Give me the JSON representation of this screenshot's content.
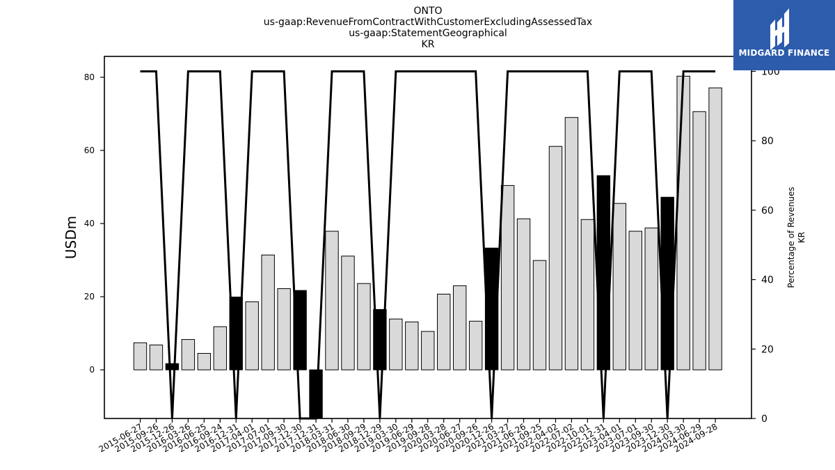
{
  "chart_data": {
    "type": "bar",
    "title": [
      "ONTO",
      "us-gaap:RevenueFromContractWithCustomerExcludingAssessedTax",
      "us-gaap:StatementGeographical",
      "KR"
    ],
    "ylabel": "USDm",
    "y2label": [
      "Percentage of Revenues",
      "KR"
    ],
    "ylim": [
      -13.3,
      85.7
    ],
    "y2lim": [
      0,
      104.3
    ],
    "yticks": [
      0,
      20,
      40,
      60,
      80
    ],
    "y2ticks": [
      0,
      20,
      40,
      60,
      80,
      100
    ],
    "grid": false,
    "categories": [
      "2015-06-27",
      "2015-09-26",
      "2015-12-26",
      "2016-03-26",
      "2016-06-25",
      "2016-09-24",
      "2016-12-31",
      "2017-04-01",
      "2017-07-01",
      "2017-09-30",
      "2017-12-30",
      "2017-12-31",
      "2018-03-31",
      "2018-06-30",
      "2018-09-29",
      "2018-12-29",
      "2019-03-30",
      "2019-06-29",
      "2019-09-28",
      "2020-03-28",
      "2020-06-27",
      "2020-09-26",
      "2020-12-26",
      "2021-03-27",
      "2021-06-26",
      "2021-09-25",
      "2022-04-02",
      "2022-07-02",
      "2022-10-01",
      "2022-12-31",
      "2023-04-01",
      "2023-07-01",
      "2023-09-30",
      "2023-12-30",
      "2024-03-30",
      "2024-06-29",
      "2024-09-28"
    ],
    "series": [
      {
        "type": "bar",
        "values": [
          7.4,
          6.8,
          1.7,
          8.3,
          4.5,
          11.8,
          19.9,
          18.6,
          31.4,
          22.2,
          21.7,
          -13.3,
          37.9,
          31.1,
          23.6,
          16.5,
          13.9,
          13.1,
          10.5,
          20.7,
          23.0,
          13.3,
          33.3,
          50.4,
          41.3,
          29.9,
          61.1,
          69.0,
          41.1,
          53.1,
          45.5,
          37.9,
          38.8,
          47.2,
          80.3,
          70.6,
          77.1
        ],
        "highlight_color": "#000000",
        "base_color": "#d9d9d9",
        "highlighted": [
          false,
          false,
          true,
          false,
          false,
          false,
          true,
          false,
          false,
          false,
          true,
          true,
          false,
          false,
          false,
          true,
          false,
          false,
          false,
          false,
          false,
          false,
          true,
          false,
          false,
          false,
          false,
          false,
          false,
          true,
          false,
          false,
          false,
          true,
          false,
          false,
          false
        ]
      },
      {
        "type": "line",
        "axis": "right",
        "color": "#000000",
        "values": [
          100,
          100,
          0,
          100,
          100,
          100,
          0,
          100,
          100,
          100,
          0,
          0,
          100,
          100,
          100,
          0,
          100,
          100,
          100,
          100,
          100,
          100,
          0,
          100,
          100,
          100,
          100,
          100,
          100,
          0,
          100,
          100,
          100,
          0,
          100,
          100,
          100
        ]
      }
    ]
  },
  "logo": {
    "text": "MIDGARD FINANCE",
    "background": "#2d5cad"
  }
}
